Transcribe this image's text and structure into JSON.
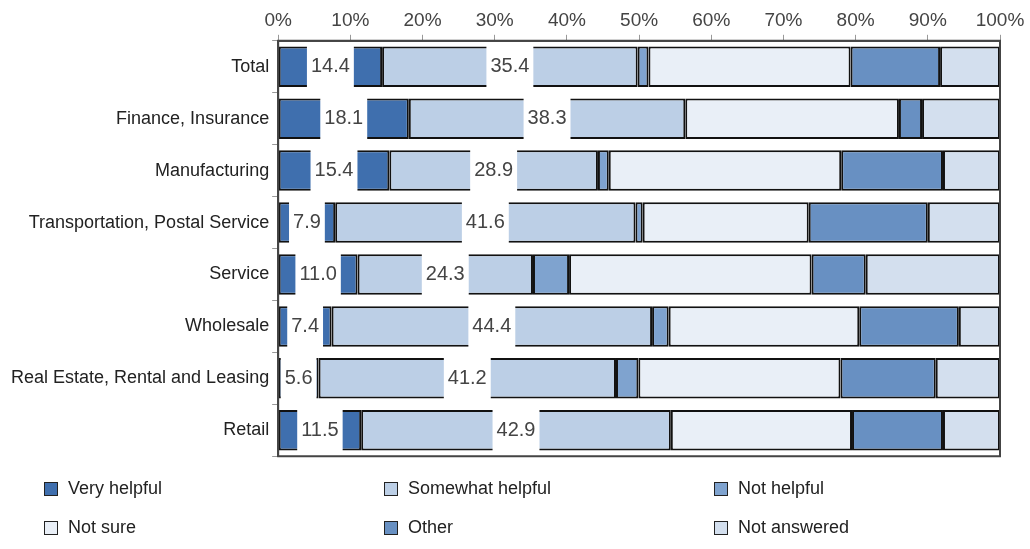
{
  "chart_data": {
    "type": "bar",
    "orientation": "horizontal",
    "stacked": true,
    "categories": [
      "Total",
      "Finance, Insurance",
      "Manufacturing",
      "Transportation, Postal Service",
      "Service",
      "Wholesale",
      "Real Estate, Rental and Leasing",
      "Retail"
    ],
    "series": [
      {
        "name": "Very helpful",
        "color": "#3f6fae",
        "values": [
          14.4,
          18.1,
          15.4,
          7.9,
          11.0,
          7.4,
          5.6,
          11.5
        ],
        "value_labels": [
          "14.4",
          "18.1",
          "15.4",
          "7.9",
          "11.0",
          "7.4",
          "5.6",
          "11.5"
        ]
      },
      {
        "name": "Somewhat helpful",
        "color": "#bccfe6",
        "values": [
          35.4,
          38.3,
          28.9,
          41.6,
          24.3,
          44.4,
          41.2,
          42.9
        ],
        "value_labels": [
          "35.4",
          "38.3",
          "28.9",
          "41.6",
          "24.3",
          "44.4",
          "41.2",
          "42.9"
        ]
      },
      {
        "name": "Not helpful",
        "color": "#7fa3cf",
        "values": [
          1.5,
          0,
          1.5,
          1.0,
          5.0,
          2.3,
          3.1,
          0
        ]
      },
      {
        "name": "Not sure",
        "color": "#e9eff7",
        "values": [
          28.0,
          29.6,
          32.2,
          23.0,
          33.6,
          26.4,
          28.0,
          25.1
        ]
      },
      {
        "name": "Other",
        "color": "#6890c2",
        "values": [
          12.4,
          3.2,
          14.1,
          16.5,
          7.5,
          13.8,
          13.2,
          12.6
        ]
      },
      {
        "name": "Not answered",
        "color": "#d3dfee",
        "values": [
          8.3,
          10.8,
          7.9,
          10.0,
          18.6,
          5.7,
          8.9,
          7.9
        ]
      }
    ],
    "xlim": [
      0,
      100
    ],
    "xticks": [
      {
        "value": 0,
        "label": "0%"
      },
      {
        "value": 10,
        "label": "10%"
      },
      {
        "value": 20,
        "label": "20%"
      },
      {
        "value": 30,
        "label": "30%"
      },
      {
        "value": 40,
        "label": "40%"
      },
      {
        "value": 50,
        "label": "50%"
      },
      {
        "value": 60,
        "label": "60%"
      },
      {
        "value": 70,
        "label": "70%"
      },
      {
        "value": 80,
        "label": "80%"
      },
      {
        "value": 90,
        "label": "90%"
      },
      {
        "value": 100,
        "label": "100%"
      }
    ],
    "grid": false,
    "legend": "bottom"
  }
}
